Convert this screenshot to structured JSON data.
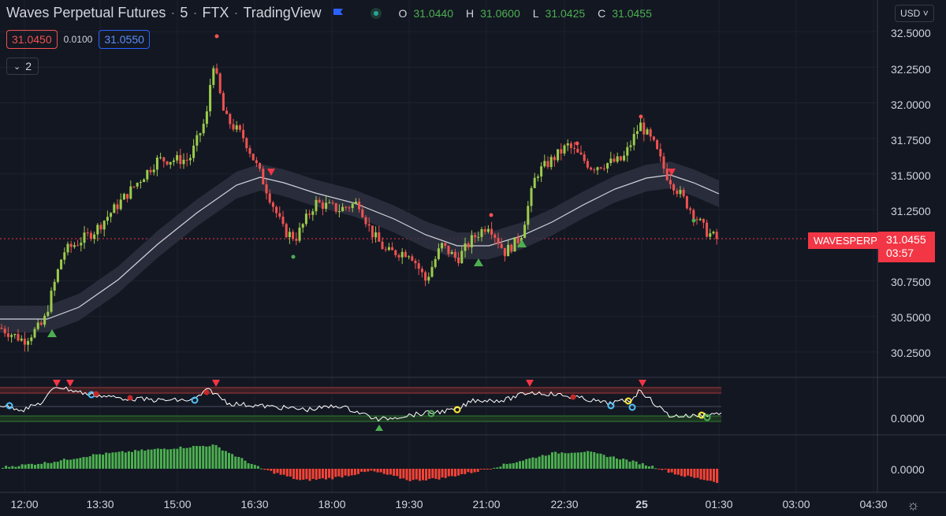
{
  "header": {
    "title": "Waves Perpetual Futures",
    "interval": "5",
    "exchange": "FTX",
    "platform": "TradingView",
    "ohlc": [
      {
        "key": "O",
        "value": "31.0440"
      },
      {
        "key": "H",
        "value": "31.0600"
      },
      {
        "key": "L",
        "value": "31.0425"
      },
      {
        "key": "C",
        "value": "31.0455"
      }
    ]
  },
  "quote": {
    "bid": "31.0450",
    "spread": "0.0100",
    "ask": "31.0550"
  },
  "indicators_toggle": {
    "label": "2"
  },
  "currency": {
    "label": "USD"
  },
  "price_axis": {
    "labels": [
      "32.5000",
      "32.2500",
      "32.0000",
      "31.7500",
      "31.5000",
      "31.2500",
      "30.7500",
      "30.5000",
      "30.2500"
    ]
  },
  "last_price": {
    "symbol": "WAVESPERP",
    "price": "31.0455",
    "countdown": "03:57"
  },
  "oscillator_axis": {
    "label": "0.0000"
  },
  "histogram_axis": {
    "label": "0.0000"
  },
  "time_axis": {
    "labels": [
      "12:00",
      "13:30",
      "15:00",
      "16:30",
      "18:00",
      "19:30",
      "21:00",
      "22:30",
      "25",
      "01:30",
      "03:00",
      "04:30"
    ]
  },
  "colors": {
    "background": "#131722",
    "bull": "#9ccc4c",
    "bear": "#ef5350",
    "band": "#2e3140",
    "accent_red": "#f23645",
    "hist_green": "#4caf50",
    "hist_red": "#f44336"
  }
}
